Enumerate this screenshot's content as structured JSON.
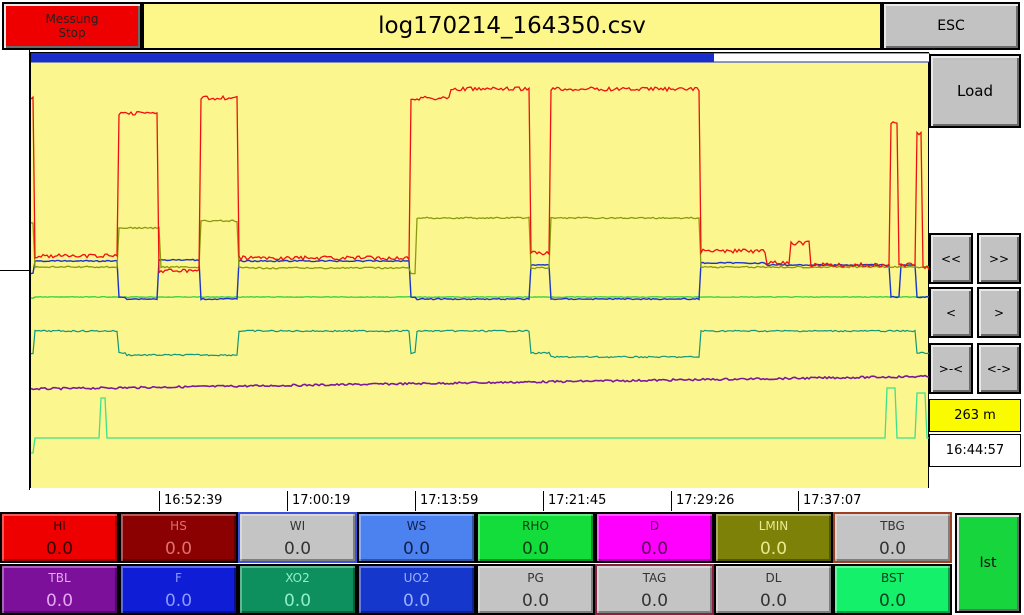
{
  "header": {
    "stop_button": [
      "Messung",
      "Stop"
    ],
    "file_title": "log170214_164350.csv",
    "esc_label": "ESC"
  },
  "side": {
    "load_label": "Load",
    "nav": {
      "fast_back": "<<",
      "fast_forward": ">>",
      "step_back": "<",
      "step_forward": ">",
      "zoom_in": ">-<",
      "zoom_out": "<->"
    },
    "distance": "263 m",
    "start_time": "16:44:57",
    "ist_label": "Ist"
  },
  "time_axis": [
    "16:52:39",
    "17:00:19",
    "17:13:59",
    "17:21:45",
    "17:29:26",
    "17:37:07"
  ],
  "scroll_progress": 0.76,
  "channels": [
    {
      "name": "HI",
      "value": "0.0",
      "bg": "#ee0000",
      "fg": "#3a0000",
      "border": "#000000"
    },
    {
      "name": "HS",
      "value": "0.0",
      "bg": "#8b0000",
      "fg": "#e07070",
      "border": "#000000"
    },
    {
      "name": "WI",
      "value": "0.0",
      "bg": "#c4c4c4",
      "fg": "#333333",
      "border": "#3a50e0"
    },
    {
      "name": "WS",
      "value": "0.0",
      "bg": "#4c82f0",
      "fg": "#10204a",
      "border": "#000000"
    },
    {
      "name": "RHO",
      "value": "0.0",
      "bg": "#12dd3a",
      "fg": "#0a4010",
      "border": "#000000"
    },
    {
      "name": "D",
      "value": "0.0",
      "bg": "#ff00ff",
      "fg": "#5a005a",
      "border": "#000000"
    },
    {
      "name": "LMIN",
      "value": "0.0",
      "bg": "#7d8108",
      "fg": "#e8ea90",
      "border": "#000000"
    },
    {
      "name": "TBG",
      "value": "0.0",
      "bg": "#c4c4c4",
      "fg": "#333333",
      "border": "#a04020"
    },
    {
      "name": "TBL",
      "value": "0.0",
      "bg": "#7d109a",
      "fg": "#e4a8f4",
      "border": "#000000"
    },
    {
      "name": "F",
      "value": "0.0",
      "bg": "#0f1dd6",
      "fg": "#8e9aff",
      "border": "#000000"
    },
    {
      "name": "XO2",
      "value": "0.0",
      "bg": "#0d8f5e",
      "fg": "#8ff0c8",
      "border": "#000000"
    },
    {
      "name": "UO2",
      "value": "0.0",
      "bg": "#1637cc",
      "fg": "#9ab0ff",
      "border": "#000000"
    },
    {
      "name": "PG",
      "value": "0.0",
      "bg": "#c4c4c4",
      "fg": "#333333",
      "border": "#000000"
    },
    {
      "name": "TAG",
      "value": "0.0",
      "bg": "#c4c4c4",
      "fg": "#333333",
      "border": "#8a2040"
    },
    {
      "name": "DL",
      "value": "0.0",
      "bg": "#c4c4c4",
      "fg": "#333333",
      "border": "#000000"
    },
    {
      "name": "BST",
      "value": "0.0",
      "bg": "#15f06a",
      "fg": "#0a4020",
      "border": "#000000"
    }
  ],
  "trace_colors": {
    "HI": "#ee1010",
    "LMIN": "#8a9a10",
    "WS": "#1a34c8",
    "RHO": "#22cc33",
    "XO2": "#11967a",
    "TBL": "#7a1a9a",
    "BST": "#3ee08a"
  }
}
